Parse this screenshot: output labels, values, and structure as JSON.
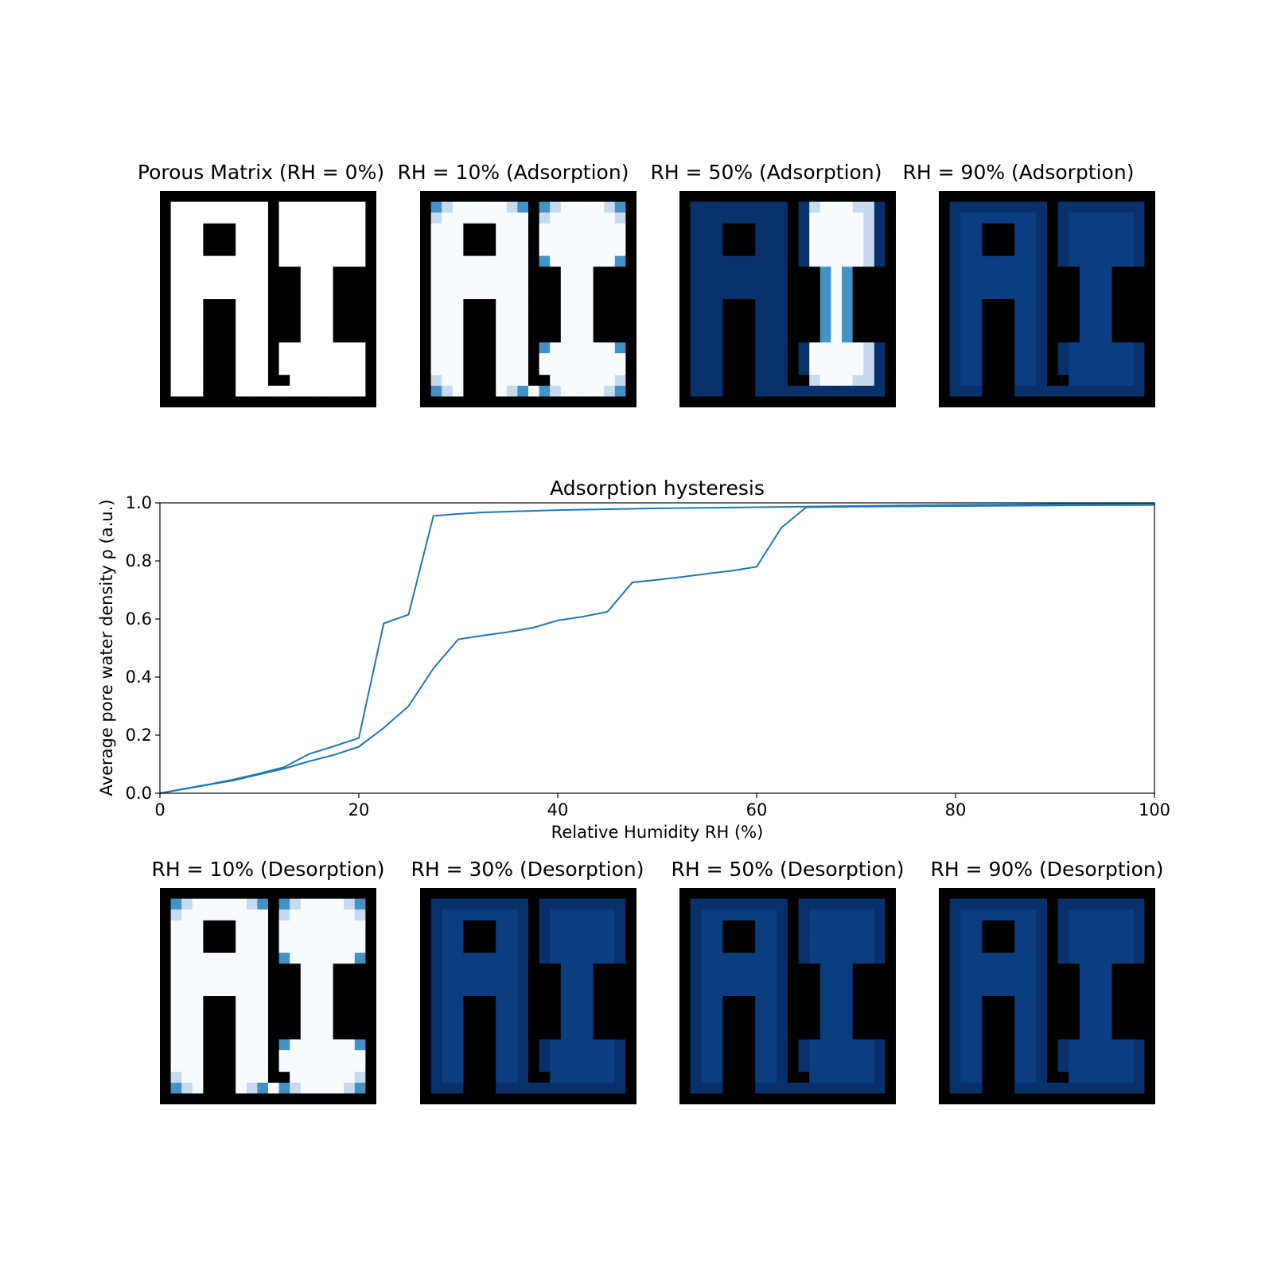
{
  "colors": {
    "wall": "#000000",
    "dry": "#f7fbff",
    "edge_light": "#c6dbef",
    "edge_mid": "#4292c6",
    "wet": "#08306b",
    "wet_mid": "#0b3d80",
    "line": "#1f77b4"
  },
  "panels_top": [
    {
      "title": "Porous Matrix (RH = 0%)",
      "state": "matrix"
    },
    {
      "title": "RH = 10% (Adsorption)",
      "state": "dry"
    },
    {
      "title": "RH = 50% (Adsorption)",
      "state": "partial"
    },
    {
      "title": "RH = 90% (Adsorption)",
      "state": "wet"
    }
  ],
  "panels_bottom": [
    {
      "title": "RH = 10% (Desorption)",
      "state": "dry"
    },
    {
      "title": "RH = 30% (Desorption)",
      "state": "wet"
    },
    {
      "title": "RH = 50% (Desorption)",
      "state": "wet"
    },
    {
      "title": "RH = 90% (Desorption)",
      "state": "wet"
    }
  ],
  "chart_data": {
    "type": "line",
    "title": "Adsorption hysteresis",
    "xlabel": "Relative Humidity RH (%)",
    "ylabel": "Average pore water density ρ (a.u.)",
    "xlim": [
      0,
      100
    ],
    "ylim": [
      0,
      1.0
    ],
    "xticks": [
      "0",
      "20",
      "40",
      "60",
      "80",
      "100"
    ],
    "yticks": [
      "0.0",
      "0.2",
      "0.4",
      "0.6",
      "0.8",
      "1.0"
    ],
    "grid": false,
    "series": [
      {
        "x": [
          0,
          2.5,
          5,
          7.5,
          10,
          12.5,
          15,
          17.5,
          20,
          22.5,
          25,
          27.5,
          30,
          32.5,
          35,
          37.5,
          40,
          42.5,
          45,
          47.5,
          50,
          52.5,
          55,
          57.5,
          60,
          62.5,
          65,
          67.5,
          70,
          75,
          80,
          85,
          90,
          95,
          100
        ],
        "y": [
          0.0,
          0.015,
          0.03,
          0.045,
          0.065,
          0.085,
          0.11,
          0.132,
          0.16,
          0.225,
          0.3,
          0.43,
          0.53,
          0.543,
          0.555,
          0.57,
          0.595,
          0.608,
          0.625,
          0.726,
          0.735,
          0.745,
          0.756,
          0.766,
          0.78,
          0.915,
          0.985,
          0.986,
          0.987,
          0.988,
          0.989,
          0.99,
          0.991,
          0.992,
          0.993
        ]
      },
      {
        "x": [
          100,
          95,
          90,
          85,
          80,
          75,
          70,
          65,
          60,
          55,
          50,
          45,
          40,
          35,
          32.5,
          30,
          27.5,
          25,
          22.5,
          20,
          17.5,
          15,
          12.5,
          10,
          7.5,
          5,
          2.5,
          0
        ],
        "y": [
          0.998,
          0.997,
          0.996,
          0.994,
          0.993,
          0.991,
          0.989,
          0.987,
          0.985,
          0.983,
          0.981,
          0.978,
          0.975,
          0.97,
          0.967,
          0.962,
          0.955,
          0.615,
          0.585,
          0.19,
          0.162,
          0.135,
          0.09,
          0.068,
          0.048,
          0.031,
          0.016,
          0.0
        ]
      }
    ]
  }
}
